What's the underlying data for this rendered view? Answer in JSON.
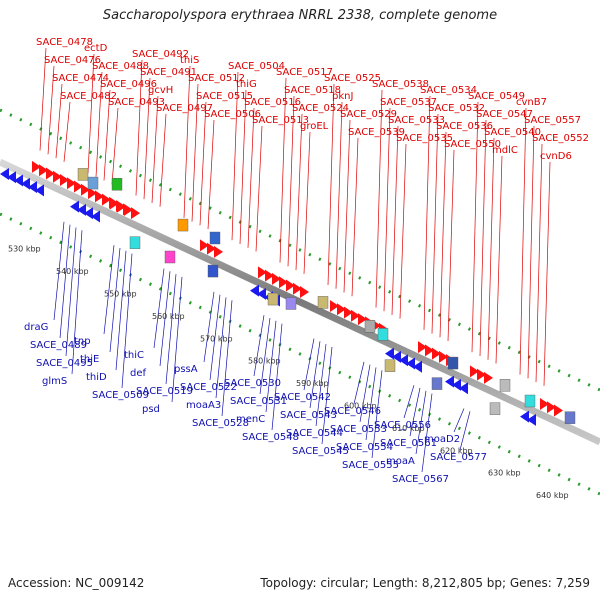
{
  "title": "Saccharopolyspora erythraea NRRL 2338, complete genome",
  "footer": {
    "accession": "Accession: NC_009142",
    "summary": "Topology: circular; Length: 8,212,805 bp; Genes: 7,259"
  },
  "colors": {
    "forward": "#ff1111",
    "reverse": "#1a1aee",
    "forward_label": "#dd0000",
    "reverse_label": "#1010b0",
    "backbone": "#8a8a8a",
    "scale_dots": "#2a9a2a"
  },
  "ticks": [
    {
      "label": "530 kbp"
    },
    {
      "label": "540 kbp"
    },
    {
      "label": "550 kbp"
    },
    {
      "label": "560 kbp"
    },
    {
      "label": "570 kbp"
    },
    {
      "label": "580 kbp"
    },
    {
      "label": "590 kbp"
    },
    {
      "label": "600 kbp"
    },
    {
      "label": "610 kbp"
    },
    {
      "label": "620 kbp"
    },
    {
      "label": "630 kbp"
    },
    {
      "label": "640 kbp"
    }
  ],
  "forward_labels": [
    "SACE_0478",
    "SACE_0476",
    "SACE_0474",
    "SACE_0482",
    "ectD",
    "SACE_0488",
    "SACE_0496",
    "SACE_0493",
    "SACE_0492",
    "SACE_0491",
    "gcvH",
    "SACE_0497",
    "thiS",
    "SACE_0512",
    "SACE_0515",
    "SACE_0506",
    "SACE_0504",
    "thiG",
    "SACE_0516",
    "SACE_0513",
    "SACE_0517",
    "SACE_0518",
    "SACE_0524",
    "groEL",
    "SACE_0525",
    "pknJ",
    "SACE_0529",
    "SACE_0539",
    "SACE_0538",
    "SACE_0537",
    "SACE_0533",
    "SACE_0535",
    "SACE_0534",
    "SACE_0532",
    "SACE_0536",
    "SACE_0550",
    "SACE_0549",
    "SACE_0547",
    "SACE_0540",
    "mdlC",
    "cvnB7",
    "SACE_0557",
    "SACE_0552",
    "cvnD6"
  ],
  "reverse_labels": [
    "draG",
    "SACE_0489",
    "SACE_0495",
    "glmS",
    "tnp",
    "thiE",
    "thiD",
    "SACE_0509",
    "thiC",
    "def",
    "SACE_0519",
    "psd",
    "pssA",
    "SACE_0522",
    "moaA3",
    "SACE_0528",
    "SACE_0530",
    "SACE_0531",
    "menC",
    "SACE_0548",
    "SACE_0542",
    "SACE_0543",
    "SACE_0544",
    "SACE_0545",
    "SACE_0546",
    "SACE_0553",
    "SACE_0554",
    "SACE_0555",
    "SACE_0556",
    "SACE_0561",
    "moaA",
    "SACE_0567",
    "moaD2",
    "SACE_0577"
  ]
}
